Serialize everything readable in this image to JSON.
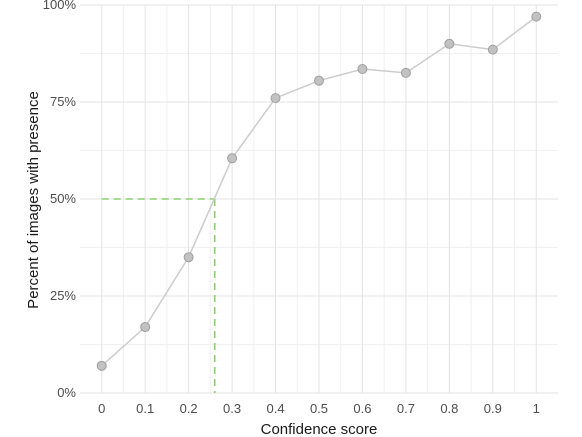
{
  "chart_data": {
    "type": "line",
    "title": "",
    "xlabel": "Confidence score",
    "ylabel": "Percent of images with presence",
    "x": [
      0,
      0.1,
      0.2,
      0.3,
      0.4,
      0.5,
      0.6,
      0.7,
      0.8,
      0.9,
      1
    ],
    "y": [
      7,
      17,
      35,
      60.5,
      76,
      80.5,
      83.5,
      82.5,
      90,
      88.5,
      97
    ],
    "xlim": [
      -0.05,
      1.05
    ],
    "ylim": [
      0,
      100
    ],
    "x_ticks": [
      0,
      0.1,
      0.2,
      0.3,
      0.4,
      0.5,
      0.6,
      0.7,
      0.8,
      0.9,
      1
    ],
    "x_tick_labels": [
      "0",
      "0.1",
      "0.2",
      "0.3",
      "0.4",
      "0.5",
      "0.6",
      "0.7",
      "0.8",
      "0.9",
      "1"
    ],
    "y_ticks": [
      0,
      25,
      50,
      75,
      100
    ],
    "y_tick_labels": [
      "0%",
      "25%",
      "50%",
      "75%",
      "100%"
    ],
    "grid": true,
    "line_color": "#cccccc",
    "marker_fill": "#c2c2c2",
    "marker_stroke": "#9e9e9e",
    "reference_line": {
      "x": 0.26,
      "y": 50,
      "color": "#8ccf6e",
      "style": "dashed"
    }
  }
}
